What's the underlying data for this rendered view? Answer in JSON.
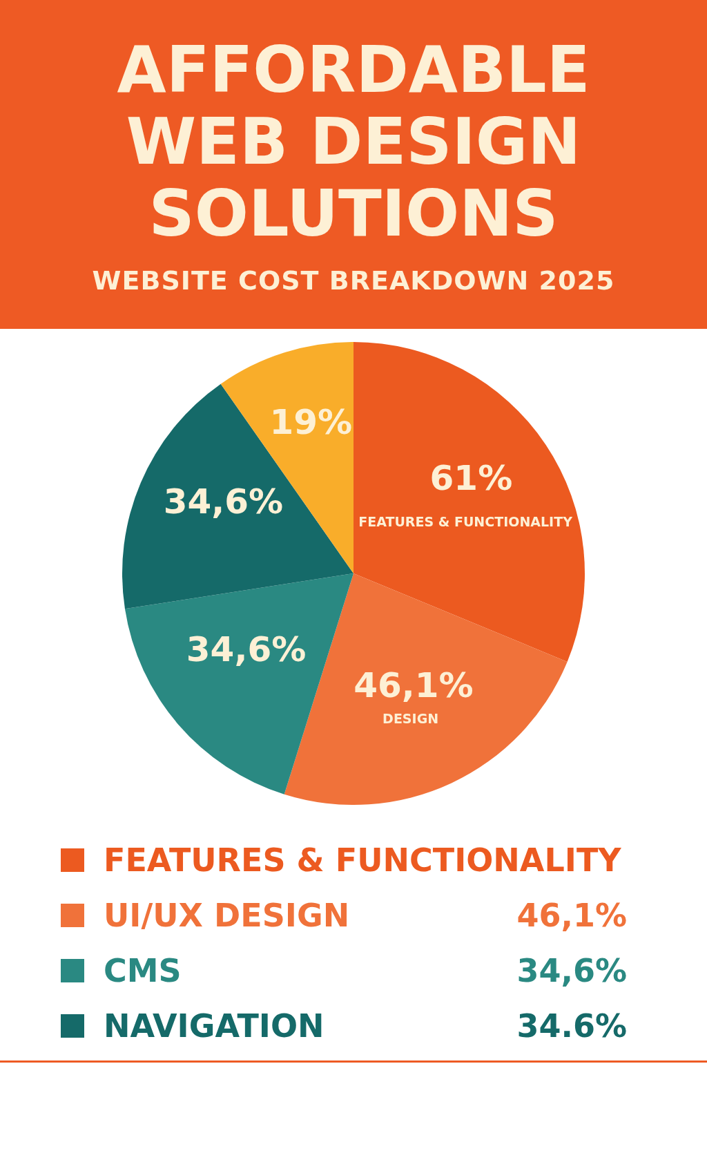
{
  "chart_data": {
    "type": "pie",
    "title": "AFFORDABLE WEB DESIGN SOLUTIONS",
    "subtitle": "WEBSITE COST BREAKDOWN  2025",
    "categories": [
      "FEATURES & FUNCTIONALITY",
      "UI/UX DESIGN",
      "CMS",
      "NAVIGATION",
      null
    ],
    "values": [
      61,
      46.1,
      34.6,
      34.6,
      19
    ],
    "value_labels": [
      "61%",
      "46,1%",
      "34,6%",
      "34,6%",
      "19%"
    ],
    "colors": [
      "#ec5a20",
      "#f0723a",
      "#2a8982",
      "#156a69",
      "#f9ad2a"
    ],
    "annotations": [
      "DESIGN",
      "46,1%",
      "34,6%",
      "34.6%"
    ],
    "legend": "bottom"
  }
}
